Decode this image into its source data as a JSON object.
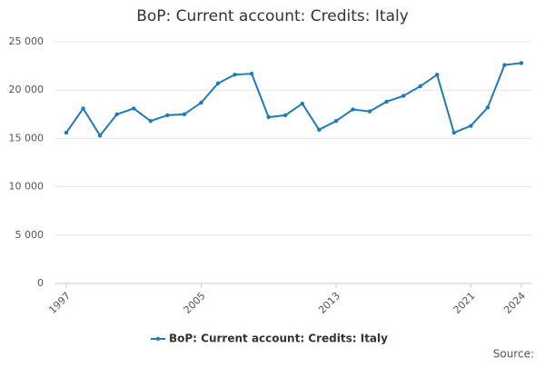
{
  "chart_data": {
    "type": "line",
    "title": "BoP: Current account: Credits: Italy",
    "x": [
      1997,
      1998,
      1999,
      2000,
      2001,
      2002,
      2003,
      2004,
      2005,
      2006,
      2007,
      2008,
      2009,
      2010,
      2011,
      2012,
      2013,
      2014,
      2015,
      2016,
      2017,
      2018,
      2019,
      2020,
      2021,
      2022,
      2023,
      2024
    ],
    "series": [
      {
        "name": "BoP: Current account: Credits: Italy",
        "color": "#1f7ab8",
        "values": [
          15600,
          18100,
          15300,
          17500,
          18100,
          16800,
          17400,
          17500,
          18700,
          20700,
          21600,
          21700,
          17200,
          17400,
          18600,
          15900,
          16800,
          18000,
          17800,
          18800,
          19400,
          20400,
          21600,
          15600,
          16300,
          18200,
          22600,
          22800
        ]
      }
    ],
    "xlim": [
      1997,
      2024
    ],
    "xticks": [
      1997,
      2005,
      2013,
      2021,
      2024
    ],
    "ylim": [
      0,
      25000
    ],
    "yticks": [
      0,
      {
        "value": 5000,
        "label": "5 000"
      },
      {
        "value": 10000,
        "label": "10 000"
      },
      {
        "value": 15000,
        "label": "15 000"
      },
      {
        "value": 20000,
        "label": "20 000"
      },
      {
        "value": 25000,
        "label": "25 000"
      }
    ],
    "grid": true,
    "legend": "bottom",
    "source": "Source:"
  }
}
